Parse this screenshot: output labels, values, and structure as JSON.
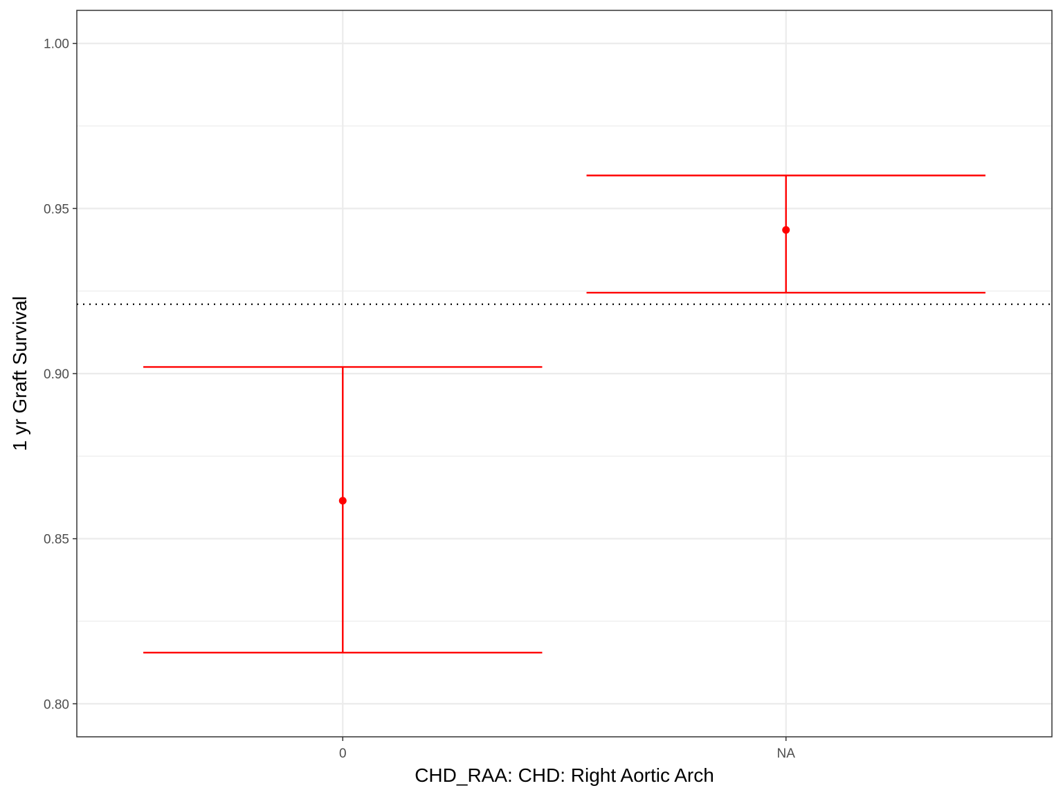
{
  "chart_data": {
    "type": "errorbar",
    "title": "",
    "xlabel": "CHD_RAA: CHD: Right Aortic Arch",
    "ylabel": "1 yr Graft Survival",
    "categories": [
      "0",
      "NA"
    ],
    "estimates": [
      0.8615,
      0.9435
    ],
    "lower": [
      0.8155,
      0.9245
    ],
    "upper": [
      0.902,
      0.96
    ],
    "reference_line": 0.921,
    "reference_line_style": "dotted",
    "ylim": [
      0.79,
      1.01
    ],
    "yticks": [
      0.8,
      0.85,
      0.9,
      0.95,
      1.0
    ],
    "ytick_labels": [
      "0.80",
      "0.85",
      "0.90",
      "0.95",
      "1.00"
    ],
    "grid": true,
    "colors": {
      "series": "#ff0000",
      "reference": "#000000",
      "grid": "#ebebeb",
      "panel_border": "#333333"
    }
  }
}
